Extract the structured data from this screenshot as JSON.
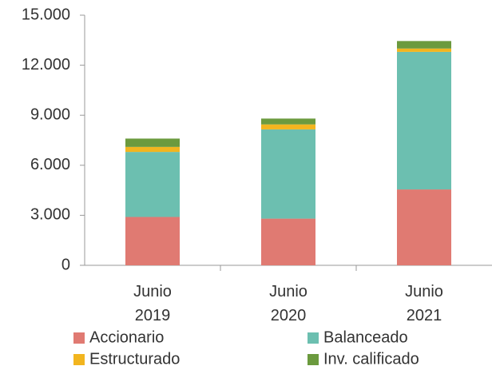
{
  "chart_data": {
    "type": "stacked_bar",
    "categories": [
      "Junio 2019",
      "Junio 2020",
      "Junio 2021"
    ],
    "series": [
      {
        "name": "Accionario",
        "color": "#e07a72",
        "values": [
          2900,
          2800,
          4550
        ]
      },
      {
        "name": "Balanceado",
        "color": "#6cbfb0",
        "values": [
          3900,
          5350,
          8250
        ]
      },
      {
        "name": "Estructurado",
        "color": "#f2b51f",
        "values": [
          300,
          300,
          200
        ]
      },
      {
        "name": "Inv. calificado",
        "color": "#6b9a3e",
        "values": [
          500,
          350,
          450
        ]
      }
    ],
    "ylim": [
      0,
      15000
    ],
    "yticks": [
      0,
      {
        "value": 3000,
        "label": "3.000"
      },
      {
        "value": 6000,
        "label": "6.000"
      },
      {
        "value": 9000,
        "label": "9.000"
      },
      {
        "value": 12000,
        "label": "12.000"
      },
      {
        "value": 15000,
        "label": "15.000"
      }
    ],
    "grid": false
  }
}
